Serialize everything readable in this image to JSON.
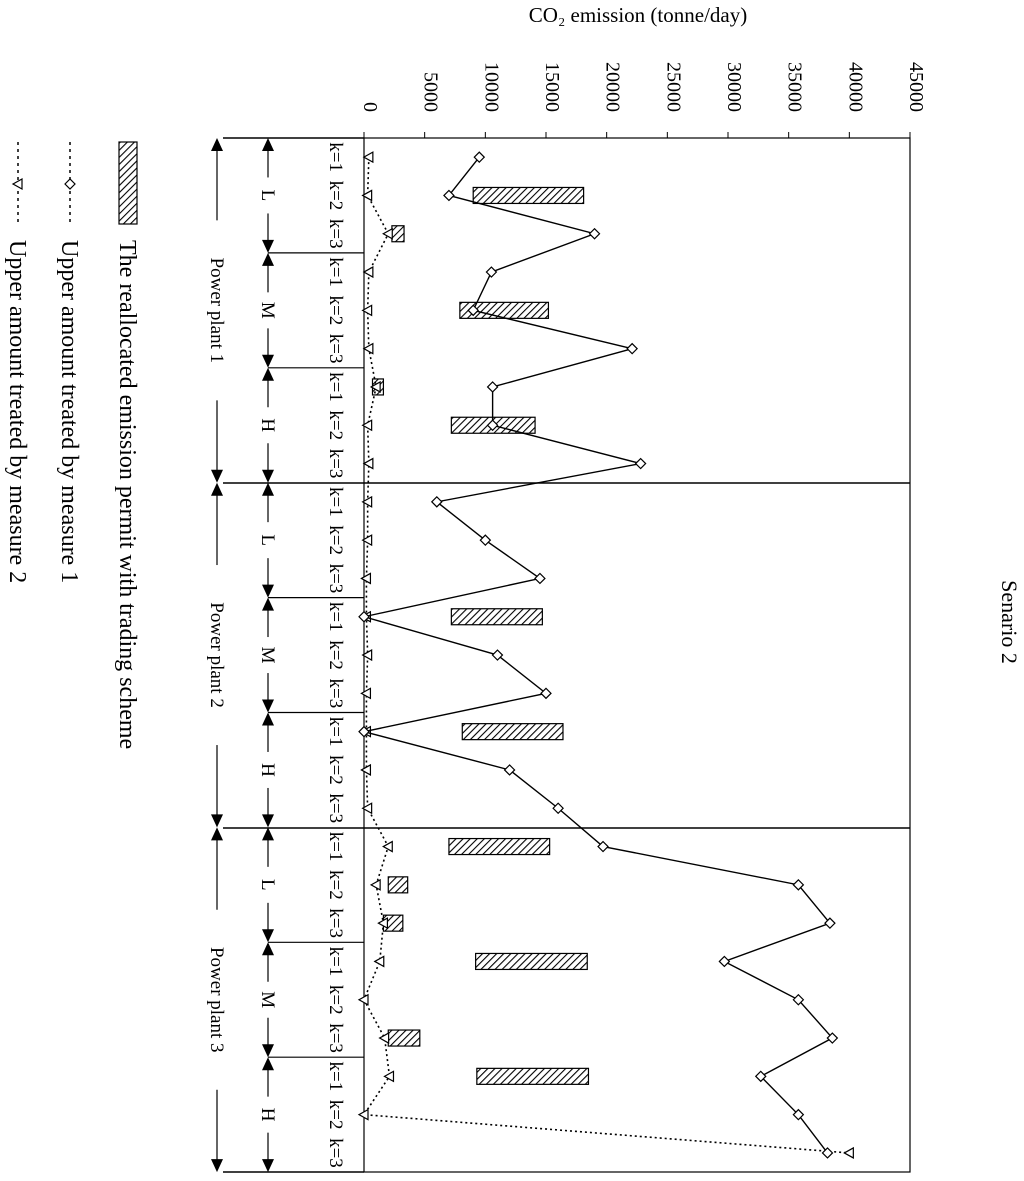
{
  "chart_data": {
    "type": "bar",
    "title": "Senario 2",
    "ylabel": "CO₂ emission (tonne/day)",
    "ylim": [
      0,
      45000
    ],
    "y_ticks": [
      0,
      5000,
      10000,
      15000,
      20000,
      25000,
      30000,
      35000,
      40000,
      45000
    ],
    "grid": false,
    "legend_position": "bottom",
    "groups": [
      {
        "label": "Power plant 1",
        "levels": [
          "L",
          "M",
          "H"
        ]
      },
      {
        "label": "Power plant 2",
        "levels": [
          "L",
          "M",
          "H"
        ]
      },
      {
        "label": "Power plant 3",
        "levels": [
          "L",
          "M",
          "H"
        ]
      }
    ],
    "categories": [
      "k=1",
      "k=2",
      "k=3",
      "k=1",
      "k=2",
      "k=3",
      "k=1",
      "k=2",
      "k=3",
      "k=1",
      "k=2",
      "k=3",
      "k=1",
      "k=2",
      "k=3",
      "k=1",
      "k=2",
      "k=3",
      "k=1",
      "k=2",
      "k=3",
      "k=1",
      "k=2",
      "k=3",
      "k=1",
      "k=2",
      "k=3"
    ],
    "series": [
      {
        "name": "The reallocated emission permit with trading scheme",
        "kind": "bar",
        "ranges": [
          null,
          [
            9000,
            18100
          ],
          [
            2300,
            3300
          ],
          null,
          [
            7900,
            15200
          ],
          null,
          [
            700,
            1600
          ],
          [
            7200,
            14100
          ],
          null,
          null,
          null,
          null,
          [
            7200,
            14700
          ],
          null,
          null,
          [
            8100,
            16400
          ],
          null,
          null,
          [
            7000,
            15300
          ],
          [
            2000,
            3600
          ],
          [
            1600,
            3200
          ],
          [
            9200,
            18400
          ],
          null,
          [
            2000,
            4600
          ],
          [
            9300,
            18500
          ],
          null,
          null
        ]
      },
      {
        "name": "Upper amount treated by measure 1",
        "kind": "line",
        "line_style": "solid",
        "marker": "diamond",
        "values": [
          9500,
          7000,
          19000,
          10500,
          9000,
          22100,
          10600,
          10600,
          22800,
          6000,
          10000,
          14500,
          0,
          11000,
          15000,
          0,
          12000,
          16000,
          19700,
          35800,
          38400,
          29700,
          35800,
          38600,
          32700,
          35800,
          38200
        ]
      },
      {
        "name": "Upper amount treated by measure 2",
        "kind": "line",
        "line_style": "dotted",
        "marker": "triangle",
        "values": [
          400,
          300,
          2000,
          400,
          300,
          400,
          1000,
          300,
          400,
          300,
          300,
          200,
          200,
          300,
          200,
          200,
          200,
          300,
          2000,
          1000,
          1600,
          1300,
          0,
          1700,
          2100,
          0,
          40000
        ]
      }
    ]
  }
}
